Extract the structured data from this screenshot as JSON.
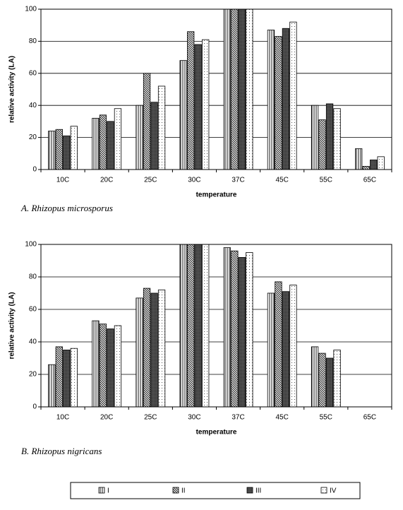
{
  "chart_data": [
    {
      "type": "bar",
      "caption": "A.  Rhizopus microsporus",
      "x_label": "temperature",
      "y_label": "relative activity (LA)",
      "categories": [
        "10C",
        "20C",
        "25C",
        "30C",
        "37C",
        "45C",
        "55C",
        "65C"
      ],
      "series": [
        {
          "pattern": "vertical",
          "values": [
            24,
            32,
            40,
            68,
            100,
            87,
            40,
            13
          ]
        },
        {
          "pattern": "diagonal",
          "values": [
            25,
            34,
            60,
            86,
            100,
            83,
            31,
            2
          ]
        },
        {
          "pattern": "dense",
          "values": [
            21,
            30,
            42,
            78,
            100,
            88,
            41,
            6
          ]
        },
        {
          "pattern": "dotted",
          "values": [
            27,
            38,
            52,
            81,
            100,
            92,
            38,
            8
          ]
        }
      ],
      "ylim": [
        0,
        100
      ],
      "yticks": [
        0,
        20,
        40,
        60,
        80,
        100
      ],
      "grid": true
    },
    {
      "type": "bar",
      "caption": "B.  Rhizopus nigricans",
      "x_label": "temperature",
      "y_label": "relative activity (LA)",
      "categories": [
        "10C",
        "20C",
        "25C",
        "30C",
        "37C",
        "45C",
        "55C",
        "65C"
      ],
      "series": [
        {
          "name": "I",
          "pattern": "vertical",
          "values": [
            26,
            53,
            67,
            100,
            98,
            70,
            37,
            null
          ]
        },
        {
          "name": "II",
          "pattern": "diagonal",
          "values": [
            37,
            51,
            73,
            100,
            96,
            77,
            33,
            null
          ]
        },
        {
          "name": "III",
          "pattern": "dense",
          "values": [
            35,
            48,
            70,
            100,
            92,
            71,
            30,
            null
          ]
        },
        {
          "name": "IV",
          "pattern": "dotted",
          "values": [
            36,
            50,
            72,
            100,
            95,
            75,
            35,
            null
          ]
        }
      ],
      "ylim": [
        0,
        100
      ],
      "yticks": [
        0,
        20,
        40,
        60,
        80,
        100
      ],
      "grid": true
    }
  ]
}
